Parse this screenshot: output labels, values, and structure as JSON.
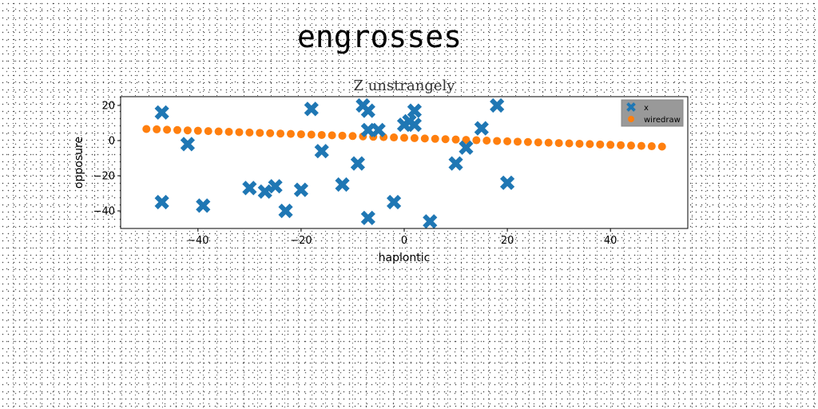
{
  "figure": {
    "title": "engrosses"
  },
  "chart_data": {
    "type": "scatter",
    "title": "Z unstrangely",
    "xlabel": "haplontic",
    "ylabel": "opposure",
    "xlim": [
      -55,
      55
    ],
    "ylim": [
      -50,
      25
    ],
    "xticks": [
      -40,
      -20,
      0,
      20,
      40
    ],
    "yticks": [
      -40,
      -20,
      0,
      20
    ],
    "grid": false,
    "legend_position": "top-right",
    "series": [
      {
        "name": "x",
        "marker": "X",
        "color": "#1f77b4",
        "points": [
          [
            -47,
            16
          ],
          [
            -47,
            -35
          ],
          [
            -42,
            -2
          ],
          [
            -39,
            -37
          ],
          [
            -30,
            -27
          ],
          [
            -27,
            -29
          ],
          [
            -25,
            -26
          ],
          [
            -23,
            -40
          ],
          [
            -20,
            -28
          ],
          [
            -18,
            18
          ],
          [
            -16,
            -6
          ],
          [
            -12,
            -25
          ],
          [
            -9,
            -13
          ],
          [
            -8,
            20
          ],
          [
            -7,
            17
          ],
          [
            -7,
            6
          ],
          [
            -7,
            -44
          ],
          [
            -5,
            6
          ],
          [
            -2,
            -35
          ],
          [
            0,
            9
          ],
          [
            1,
            11
          ],
          [
            2,
            9
          ],
          [
            2,
            17
          ],
          [
            5,
            -46
          ],
          [
            10,
            -13
          ],
          [
            12,
            -4
          ],
          [
            15,
            7
          ],
          [
            18,
            20
          ],
          [
            20,
            -24
          ]
        ]
      },
      {
        "name": "wiredraw",
        "marker": "o",
        "color": "#ff7f0e",
        "points": [
          [
            -50,
            6.6
          ],
          [
            -48,
            6.4
          ],
          [
            -46,
            6.2
          ],
          [
            -44,
            6.0
          ],
          [
            -42,
            5.8
          ],
          [
            -40,
            5.6
          ],
          [
            -38,
            5.4
          ],
          [
            -36,
            5.2
          ],
          [
            -34,
            5.0
          ],
          [
            -32,
            4.8
          ],
          [
            -30,
            4.6
          ],
          [
            -28,
            4.4
          ],
          [
            -26,
            4.2
          ],
          [
            -24,
            4.0
          ],
          [
            -22,
            3.8
          ],
          [
            -20,
            3.6
          ],
          [
            -18,
            3.4
          ],
          [
            -16,
            3.2
          ],
          [
            -14,
            3.0
          ],
          [
            -12,
            2.8
          ],
          [
            -10,
            2.6
          ],
          [
            -8,
            2.4
          ],
          [
            -6,
            2.2
          ],
          [
            -4,
            2.0
          ],
          [
            -2,
            1.8
          ],
          [
            0,
            1.6
          ],
          [
            2,
            1.4
          ],
          [
            4,
            1.2
          ],
          [
            6,
            1.0
          ],
          [
            8,
            0.8
          ],
          [
            10,
            0.6
          ],
          [
            12,
            0.4
          ],
          [
            14,
            0.2
          ],
          [
            16,
            0.0
          ],
          [
            18,
            -0.2
          ],
          [
            20,
            -0.4
          ],
          [
            22,
            -0.6
          ],
          [
            24,
            -0.8
          ],
          [
            26,
            -1.0
          ],
          [
            28,
            -1.2
          ],
          [
            30,
            -1.4
          ],
          [
            32,
            -1.6
          ],
          [
            34,
            -1.8
          ],
          [
            36,
            -2.0
          ],
          [
            38,
            -2.2
          ],
          [
            40,
            -2.4
          ],
          [
            42,
            -2.6
          ],
          [
            44,
            -2.8
          ],
          [
            46,
            -3.0
          ],
          [
            48,
            -3.2
          ],
          [
            50,
            -3.4
          ]
        ]
      }
    ]
  }
}
